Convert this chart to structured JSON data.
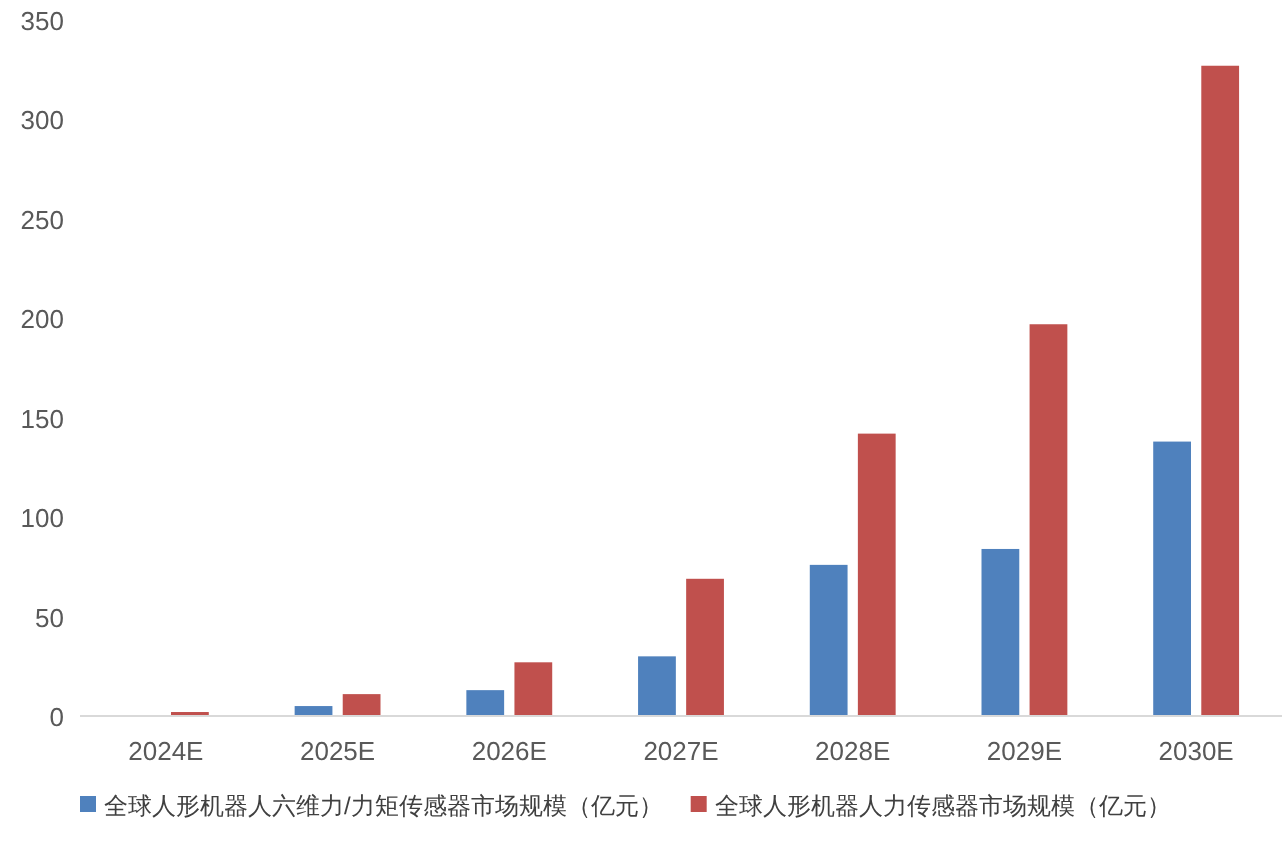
{
  "chart_data": {
    "type": "bar",
    "categories": [
      "2024E",
      "2025E",
      "2026E",
      "2027E",
      "2028E",
      "2029E",
      "2030E"
    ],
    "series": [
      {
        "name": "全球人形机器人六维力/力矩传感器市场规模（亿元）",
        "color": "#4f81bd",
        "values": [
          0,
          5,
          13,
          30,
          76,
          84,
          138
        ]
      },
      {
        "name": "全球人形机器人力传感器市场规模（亿元）",
        "color": "#c0504d",
        "values": [
          2,
          11,
          27,
          69,
          142,
          197,
          327
        ]
      }
    ],
    "ylim": [
      0,
      350
    ],
    "yticks": [
      0,
      50,
      100,
      150,
      200,
      250,
      300,
      350
    ],
    "grid": false,
    "legend": "bottom"
  }
}
